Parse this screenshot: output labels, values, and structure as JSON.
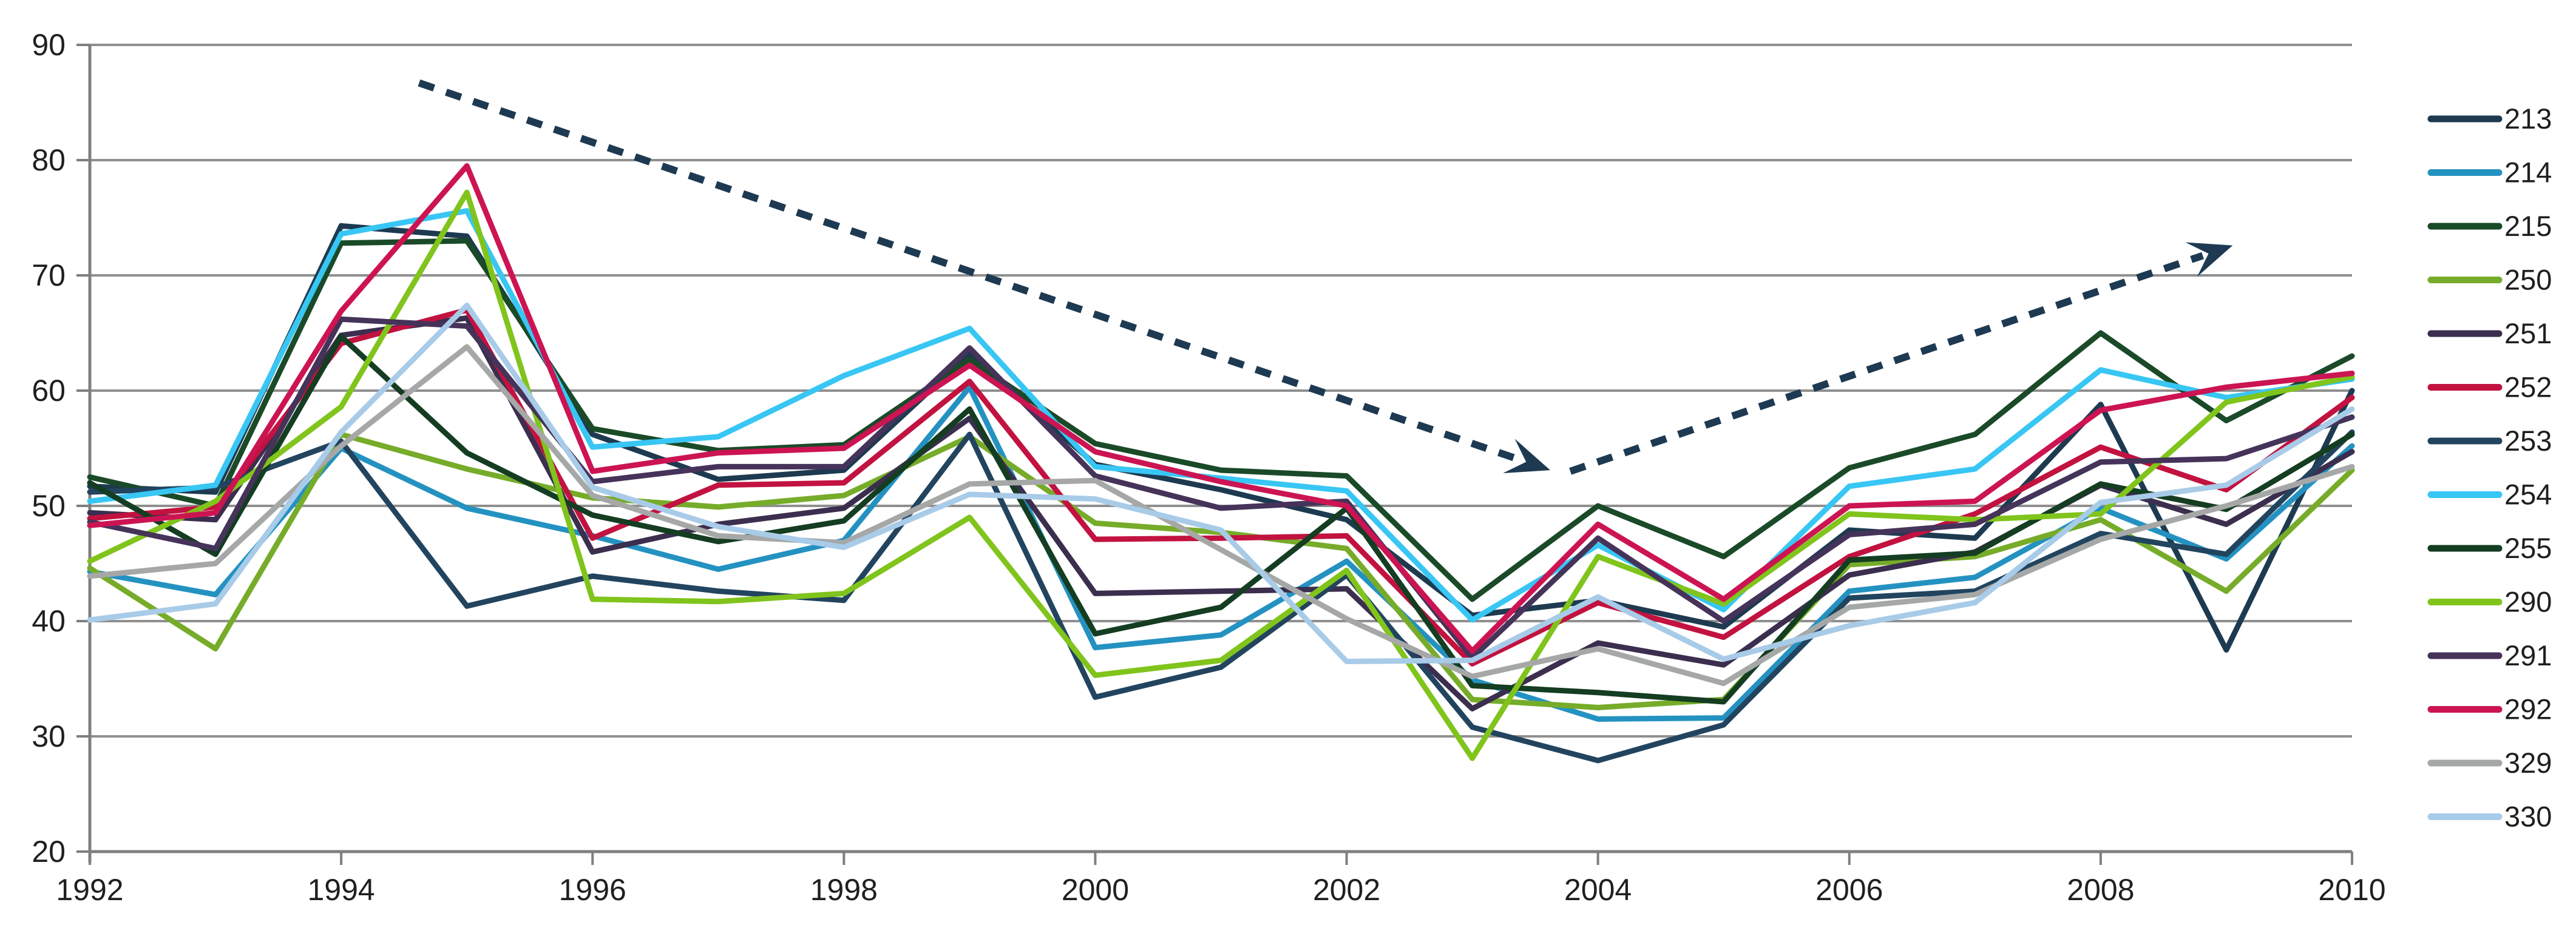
{
  "chart_data": {
    "type": "line",
    "title": "",
    "xlabel": "",
    "ylabel": "",
    "x": [
      1992,
      1993,
      1994,
      1995,
      1996,
      1997,
      1998,
      1999,
      2000,
      2001,
      2002,
      2003,
      2004,
      2005,
      2006,
      2007,
      2008,
      2009,
      2010
    ],
    "x_tick_labels": [
      "1992",
      "1994",
      "1996",
      "1998",
      "2000",
      "2002",
      "2004",
      "2006",
      "2008",
      "2010"
    ],
    "x_tick_years": [
      1992,
      1994,
      1996,
      1998,
      2000,
      2002,
      2004,
      2006,
      2008,
      2010
    ],
    "ylim": [
      20,
      90
    ],
    "y_tick_step": 10,
    "y_tick_labels": [
      "90",
      "80",
      "70",
      "60",
      "50",
      "40",
      "30",
      "20"
    ],
    "y_tick_values": [
      90,
      80,
      70,
      60,
      50,
      40,
      30,
      20
    ],
    "grid": true,
    "legend_position": "right",
    "series": [
      {
        "name": "213",
        "color": "#1D3A50",
        "values": [
          51.7,
          51.2,
          74.3,
          73.4,
          56.2,
          52.3,
          53.1,
          63.2,
          53.6,
          51.4,
          48.8,
          40.5,
          41.8,
          39.5,
          47.9,
          47.2,
          58.8,
          37.5,
          60.0
        ]
      },
      {
        "name": "214",
        "color": "#2492C1",
        "values": [
          44.3,
          42.3,
          55.0,
          49.8,
          47.4,
          44.5,
          47.0,
          60.3,
          37.7,
          38.8,
          45.2,
          34.9,
          31.5,
          31.6,
          42.6,
          43.8,
          49.8,
          45.4,
          55.2
        ]
      },
      {
        "name": "215",
        "color": "#1A4A28",
        "values": [
          52.5,
          50.0,
          72.8,
          73.0,
          56.7,
          54.8,
          55.3,
          62.7,
          55.4,
          53.1,
          52.6,
          41.9,
          50.0,
          45.6,
          53.3,
          56.2,
          65.0,
          57.4,
          63.0
        ]
      },
      {
        "name": "250",
        "color": "#76AC29",
        "values": [
          44.6,
          37.6,
          56.2,
          53.2,
          50.7,
          49.9,
          50.9,
          56.0,
          48.5,
          47.7,
          46.3,
          33.2,
          32.5,
          33.2,
          44.9,
          45.6,
          48.8,
          42.6,
          53.1
        ]
      },
      {
        "name": "251",
        "color": "#3B2E4E",
        "values": [
          49.4,
          48.8,
          64.8,
          66.3,
          46.0,
          48.4,
          49.8,
          57.6,
          42.4,
          42.6,
          42.8,
          32.4,
          38.1,
          36.2,
          44.0,
          46.0,
          51.8,
          48.4,
          54.7
        ]
      },
      {
        "name": "252",
        "color": "#C21240",
        "values": [
          48.9,
          49.9,
          64.1,
          67.0,
          47.2,
          51.8,
          52.0,
          60.8,
          47.1,
          47.2,
          47.4,
          36.3,
          41.6,
          38.6,
          45.6,
          49.3,
          55.1,
          51.4,
          59.4
        ]
      },
      {
        "name": "253",
        "color": "#22445F",
        "values": [
          51.2,
          51.6,
          55.6,
          41.3,
          43.9,
          42.6,
          41.8,
          56.2,
          33.4,
          36.0,
          44.0,
          30.8,
          27.9,
          31.0,
          42.0,
          42.6,
          47.6,
          45.8,
          56.4
        ]
      },
      {
        "name": "254",
        "color": "#38C6F4",
        "values": [
          50.4,
          51.8,
          73.6,
          75.6,
          55.1,
          56.0,
          61.3,
          65.4,
          53.4,
          52.4,
          51.3,
          40.1,
          46.6,
          41.0,
          51.7,
          53.2,
          61.8,
          59.4,
          61.0
        ]
      },
      {
        "name": "255",
        "color": "#143D22",
        "values": [
          52.0,
          45.8,
          64.7,
          54.6,
          49.2,
          46.9,
          48.7,
          58.4,
          38.9,
          41.2,
          49.8,
          34.4,
          33.8,
          33.0,
          45.3,
          45.9,
          51.9,
          49.7,
          56.2
        ]
      },
      {
        "name": "290",
        "color": "#80C41C",
        "values": [
          45.2,
          50.4,
          58.6,
          77.2,
          41.9,
          41.7,
          42.4,
          49.0,
          35.3,
          36.6,
          44.4,
          28.1,
          45.6,
          41.5,
          49.3,
          48.8,
          49.3,
          59.0,
          61.2
        ]
      },
      {
        "name": "291",
        "color": "#45335A",
        "values": [
          48.6,
          46.3,
          66.2,
          65.6,
          52.1,
          53.4,
          53.4,
          63.7,
          52.6,
          49.8,
          50.4,
          36.8,
          47.2,
          40.0,
          47.5,
          48.4,
          53.8,
          54.1,
          57.7
        ]
      },
      {
        "name": "292",
        "color": "#CC1453",
        "values": [
          48.3,
          49.4,
          66.9,
          79.5,
          53.0,
          54.6,
          55.0,
          62.2,
          54.7,
          52.1,
          50.0,
          37.4,
          48.4,
          41.9,
          50.0,
          50.4,
          58.3,
          60.3,
          61.5
        ]
      },
      {
        "name": "329",
        "color": "#A6A8A8",
        "values": [
          43.9,
          45.0,
          55.2,
          63.8,
          50.9,
          47.4,
          46.8,
          51.9,
          52.2,
          46.2,
          40.2,
          35.2,
          37.6,
          34.6,
          41.2,
          42.3,
          47.1,
          50.0,
          53.4
        ]
      },
      {
        "name": "330",
        "color": "#A8CBE8",
        "values": [
          40.1,
          41.5,
          56.4,
          67.4,
          51.6,
          48.2,
          46.4,
          51.0,
          50.6,
          47.9,
          36.5,
          36.6,
          42.1,
          36.7,
          39.6,
          41.6,
          50.3,
          51.8,
          58.4
        ]
      }
    ],
    "annotations": [
      {
        "id": "trend-arrow-down",
        "style": "dotted-arrow",
        "color": "#1E3A52",
        "from": {
          "year": 1994.62,
          "value": 86.7
        },
        "to": {
          "year": 2003.62,
          "value": 53.1
        }
      },
      {
        "id": "trend-arrow-up",
        "style": "dotted-arrow",
        "color": "#1E3A52",
        "from": {
          "year": 2003.78,
          "value": 53.0
        },
        "to": {
          "year": 2009.05,
          "value": 72.6
        }
      }
    ],
    "layout": {
      "plot": {
        "x_left": 148,
        "x_right": 3875,
        "y_top_value90": 74,
        "y_bottom_value20": 1404
      },
      "gridline_color": "#8F8F8F",
      "axis_color": "#7F7F7F",
      "background": "#FFFFFF",
      "line_width": 9,
      "legend": {
        "swatch_x1": 4005,
        "swatch_x2": 4117,
        "text_x": 4126,
        "first_row_y": 196,
        "row_step": 88.5
      }
    }
  }
}
